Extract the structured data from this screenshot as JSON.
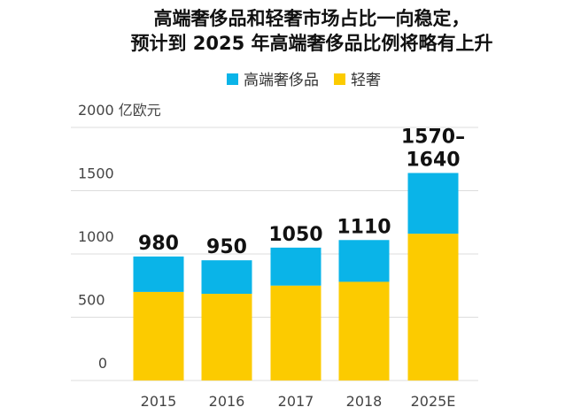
{
  "chart_data": {
    "type": "bar",
    "stacked": true,
    "title": [
      "高端奢侈品和轻奢市场占比一向稳定，",
      "预计到 2025 年高端奢侈品比例将略有上升"
    ],
    "ylabel": "亿欧元",
    "ylim": [
      0,
      2000
    ],
    "yticks": [
      0,
      500,
      1000,
      1500,
      2000
    ],
    "grid": true,
    "legend_placement": "top-center",
    "categories": [
      "2015",
      "2016",
      "2017",
      "2018",
      "2025E"
    ],
    "series": [
      {
        "name": "轻奢",
        "color": "#fccb00",
        "values": [
          700,
          685,
          750,
          780,
          1160
        ]
      },
      {
        "name": "高端奢侈品",
        "color": "#0ab4e8",
        "values": [
          280,
          265,
          300,
          330,
          480
        ]
      }
    ],
    "data_labels": [
      "980",
      "950",
      "1050",
      "1110",
      "1570–1640"
    ]
  }
}
